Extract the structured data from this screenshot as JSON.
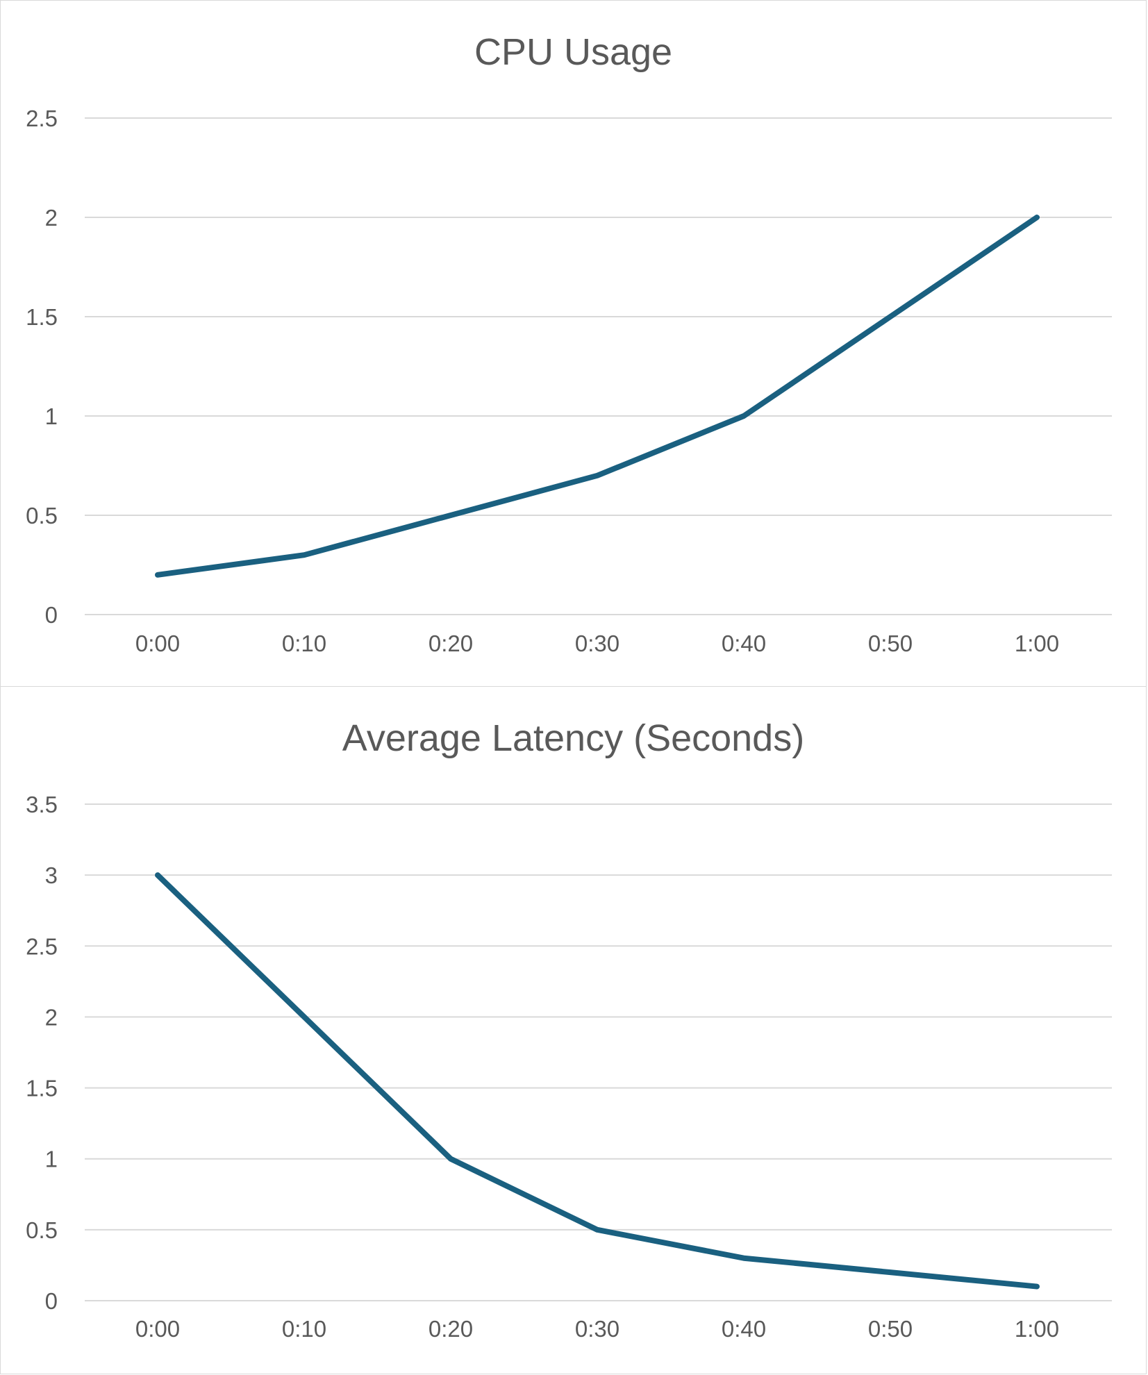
{
  "colors": {
    "line": "#1a6080",
    "grid": "#d9d9d9",
    "text": "#595959"
  },
  "chart_data": [
    {
      "type": "line",
      "title": "CPU Usage",
      "xlabel": "",
      "ylabel": "",
      "categories": [
        "0:00",
        "0:10",
        "0:20",
        "0:30",
        "0:40",
        "0:50",
        "1:00"
      ],
      "series": [
        {
          "values": [
            0.2,
            0.3,
            0.5,
            0.7,
            1.0,
            1.5,
            2.0
          ]
        }
      ],
      "ylim": [
        0,
        2.5
      ],
      "yticks": [
        "0",
        "0.5",
        "1",
        "1.5",
        "2",
        "2.5"
      ],
      "grid": true,
      "legend": "none"
    },
    {
      "type": "line",
      "title": "Average Latency (Seconds)",
      "xlabel": "",
      "ylabel": "",
      "categories": [
        "0:00",
        "0:10",
        "0:20",
        "0:30",
        "0:40",
        "0:50",
        "1:00"
      ],
      "series": [
        {
          "values": [
            3.0,
            2.0,
            1.0,
            0.5,
            0.3,
            0.2,
            0.1
          ]
        }
      ],
      "ylim": [
        0,
        3.5
      ],
      "yticks": [
        "0",
        "0.5",
        "1",
        "1.5",
        "2",
        "2.5",
        "3",
        "3.5"
      ],
      "grid": true,
      "legend": "none"
    }
  ]
}
